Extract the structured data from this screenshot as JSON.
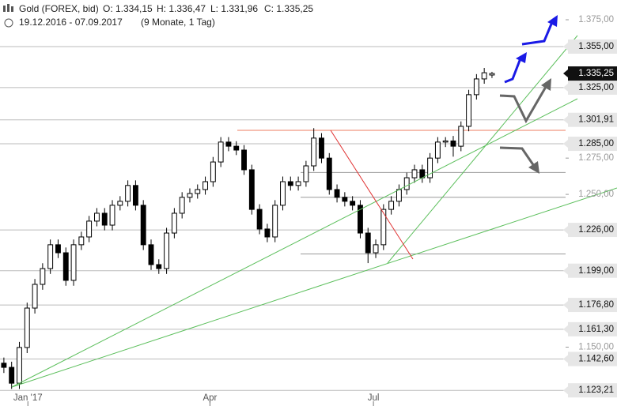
{
  "header": {
    "symbol": "Gold (FOREX, bid)",
    "open": "O: 1.334,15",
    "high": "H: 1.336,47",
    "low": "L: 1.331,96",
    "close": "C: 1.335,25",
    "range": "19.12.2016 - 07.09.2017",
    "span": "(9 Monate, 1 Tag)"
  },
  "chart_data": {
    "type": "candlestick",
    "log_scale": true,
    "ylim": [
      1120.4,
      1389.9
    ],
    "yticks": [
      {
        "value": 1375,
        "label": "1.375,00"
      },
      {
        "value": 1275,
        "label": "1.275,00"
      },
      {
        "value": 1250,
        "label": "1.250,00"
      },
      {
        "value": 1150,
        "label": "1.150,00"
      }
    ],
    "xlim": [
      -0.5,
      72.5
    ],
    "xticks": [
      {
        "value": 3.1,
        "label": "Jan '17"
      },
      {
        "value": 26.6,
        "label": "Apr"
      },
      {
        "value": 47.7,
        "label": "Jul"
      }
    ],
    "open": [
      1140.0,
      1137.4,
      1127.6,
      1149.8,
      1174.8,
      1190.1,
      1200.4,
      1216.1,
      1210.8,
      1192.7,
      1216.1,
      1221.3,
      1231.9,
      1237.2,
      1229.2,
      1242.6,
      1245.3,
      1256.1,
      1242.6,
      1216.1,
      1203.0,
      1200.4,
      1223.9,
      1237.2,
      1248.0,
      1250.6,
      1253.3,
      1258.7,
      1272.3,
      1286.2,
      1283.3,
      1280.6,
      1266.9,
      1239.8,
      1226.6,
      1221.3,
      1242.6,
      1258.7,
      1256.1,
      1258.7,
      1269.6,
      1289.0,
      1275.0,
      1253.3,
      1248.0,
      1245.3,
      1242.6,
      1223.9,
      1210.8,
      1216.1,
      1239.8,
      1245.3,
      1253.3,
      1261.4,
      1266.9,
      1261.4,
      1275.0,
      1286.2,
      1287.0,
      1283.3,
      1297.3,
      1319.9,
      1331.3,
      1334.15
    ],
    "high": [
      1143.5,
      1140.9,
      1153.3,
      1178.3,
      1193.6,
      1203.9,
      1219.6,
      1219.6,
      1214.3,
      1219.6,
      1224.8,
      1235.4,
      1240.7,
      1240.7,
      1246.1,
      1248.8,
      1259.6,
      1259.6,
      1246.1,
      1219.6,
      1206.5,
      1227.4,
      1240.7,
      1251.5,
      1254.1,
      1256.8,
      1262.2,
      1275.8,
      1289.7,
      1289.7,
      1286.8,
      1284.1,
      1270.4,
      1243.3,
      1230.1,
      1246.1,
      1262.2,
      1262.2,
      1262.2,
      1273.1,
      1296.0,
      1292.5,
      1278.5,
      1256.8,
      1251.5,
      1248.8,
      1246.1,
      1227.4,
      1219.6,
      1243.3,
      1248.8,
      1256.8,
      1264.9,
      1270.4,
      1270.4,
      1278.5,
      1289.7,
      1289.7,
      1290.5,
      1300.8,
      1323.4,
      1334.8,
      1339.3,
      1336.47
    ],
    "low": [
      1133.9,
      1124.1,
      1124.1,
      1146.3,
      1171.3,
      1186.6,
      1196.9,
      1207.3,
      1189.2,
      1189.2,
      1212.6,
      1217.8,
      1228.4,
      1225.7,
      1225.7,
      1239.1,
      1241.8,
      1239.1,
      1212.6,
      1199.5,
      1196.9,
      1196.9,
      1220.4,
      1233.7,
      1244.5,
      1247.1,
      1249.8,
      1255.2,
      1268.8,
      1279.8,
      1277.1,
      1263.4,
      1236.3,
      1223.1,
      1217.8,
      1217.8,
      1239.1,
      1252.6,
      1252.6,
      1255.2,
      1266.1,
      1271.5,
      1249.8,
      1244.5,
      1241.8,
      1239.1,
      1220.4,
      1204.0,
      1207.3,
      1212.6,
      1236.3,
      1241.8,
      1249.8,
      1257.9,
      1257.9,
      1257.9,
      1271.5,
      1282.7,
      1276.0,
      1279.8,
      1293.8,
      1316.4,
      1327.8,
      1331.96
    ],
    "close": [
      1137.4,
      1127.6,
      1149.8,
      1174.8,
      1190.1,
      1200.4,
      1216.1,
      1210.8,
      1192.7,
      1216.1,
      1221.3,
      1231.9,
      1237.2,
      1229.2,
      1242.6,
      1245.3,
      1256.1,
      1242.6,
      1216.1,
      1203.0,
      1200.4,
      1223.9,
      1237.2,
      1248.0,
      1250.6,
      1253.3,
      1258.7,
      1272.3,
      1286.2,
      1283.3,
      1280.6,
      1266.9,
      1239.8,
      1226.6,
      1221.3,
      1242.6,
      1258.7,
      1256.1,
      1258.7,
      1269.6,
      1289.0,
      1275.0,
      1253.3,
      1248.0,
      1245.3,
      1242.6,
      1223.9,
      1210.8,
      1216.1,
      1239.8,
      1245.3,
      1253.3,
      1261.4,
      1266.9,
      1261.4,
      1275.0,
      1286.2,
      1287.0,
      1283.3,
      1297.3,
      1319.9,
      1331.3,
      1335.8,
      1335.25
    ],
    "levels": [
      {
        "value": 1355,
        "label": "1.355,00"
      },
      {
        "value": 1325,
        "label": "1.325,00"
      },
      {
        "value": 1301.91,
        "label": "1.301,91"
      },
      {
        "value": 1285,
        "label": "1.285,00"
      },
      {
        "value": 1226,
        "label": "1.226,00"
      },
      {
        "value": 1199,
        "label": "1.199,00"
      },
      {
        "value": 1176.8,
        "label": "1.176,80"
      },
      {
        "value": 1161.3,
        "label": "1.161,30"
      },
      {
        "value": 1142.6,
        "label": "1.142,60"
      },
      {
        "value": 1123.21,
        "label": "1.123,21"
      }
    ],
    "last": {
      "value": 1335.25,
      "label": "1.335,25"
    },
    "support_lines": [
      1265,
      1248,
      1210
    ],
    "resistance": 1294.5,
    "resistance_color": "#f4a896",
    "level_color": "#bbbbbb",
    "candle_color": "#000000"
  }
}
